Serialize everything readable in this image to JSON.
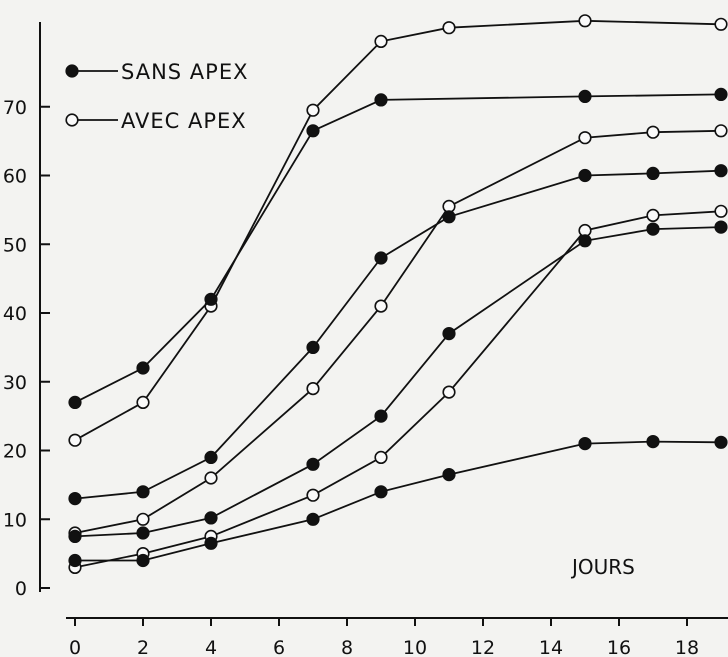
{
  "chart_data": {
    "type": "line",
    "title": "",
    "xlabel": "JOURS",
    "ylabel": "",
    "xlim": [
      0,
      19
    ],
    "ylim": [
      0,
      82
    ],
    "x_ticks": [
      0,
      2,
      4,
      6,
      8,
      10,
      12,
      14,
      16,
      18
    ],
    "y_ticks": [
      0,
      10,
      20,
      30,
      40,
      50,
      60,
      70
    ],
    "grid": false,
    "legend": {
      "position": "top-left",
      "entries": [
        {
          "label": "SANS APEX",
          "marker": "filled"
        },
        {
          "label": "AVEC APEX",
          "marker": "open"
        }
      ]
    },
    "series": [
      {
        "marker": "open",
        "points": [
          [
            0,
            21.5
          ],
          [
            2,
            27
          ],
          [
            4,
            41
          ],
          [
            7,
            69.5
          ],
          [
            9,
            79.5
          ],
          [
            11,
            81.5
          ],
          [
            15,
            82.5
          ],
          [
            19,
            82
          ]
        ]
      },
      {
        "marker": "filled",
        "points": [
          [
            0,
            27
          ],
          [
            2,
            32
          ],
          [
            4,
            42
          ],
          [
            7,
            66.5
          ],
          [
            9,
            71
          ],
          [
            15,
            71.5
          ],
          [
            19,
            71.8
          ]
        ]
      },
      {
        "marker": "open",
        "points": [
          [
            0,
            8
          ],
          [
            2,
            10
          ],
          [
            4,
            16
          ],
          [
            7,
            29
          ],
          [
            9,
            41
          ],
          [
            11,
            55.5
          ],
          [
            15,
            65.5
          ],
          [
            17,
            66.3
          ],
          [
            19,
            66.5
          ]
        ]
      },
      {
        "marker": "filled",
        "points": [
          [
            0,
            13
          ],
          [
            2,
            14
          ],
          [
            4,
            19
          ],
          [
            7,
            35
          ],
          [
            9,
            48
          ],
          [
            11,
            54
          ],
          [
            15,
            60
          ],
          [
            17,
            60.3
          ],
          [
            19,
            60.7
          ]
        ]
      },
      {
        "marker": "open",
        "points": [
          [
            0,
            3
          ],
          [
            2,
            5
          ],
          [
            4,
            7.5
          ],
          [
            7,
            13.5
          ],
          [
            9,
            19
          ],
          [
            11,
            28.5
          ],
          [
            15,
            52
          ],
          [
            17,
            54.2
          ],
          [
            19,
            54.8
          ]
        ]
      },
      {
        "marker": "filled",
        "points": [
          [
            0,
            7.5
          ],
          [
            2,
            8
          ],
          [
            4,
            10.2
          ],
          [
            7,
            18
          ],
          [
            9,
            25
          ],
          [
            11,
            37
          ],
          [
            15,
            50.5
          ],
          [
            17,
            52.2
          ],
          [
            19,
            52.5
          ]
        ]
      },
      {
        "marker": "filled",
        "points": [
          [
            0,
            4
          ],
          [
            2,
            4
          ],
          [
            4,
            6.5
          ],
          [
            7,
            10
          ],
          [
            9,
            14
          ],
          [
            11,
            16.5
          ],
          [
            15,
            21
          ],
          [
            17,
            21.3
          ],
          [
            19,
            21.2
          ]
        ]
      }
    ]
  }
}
